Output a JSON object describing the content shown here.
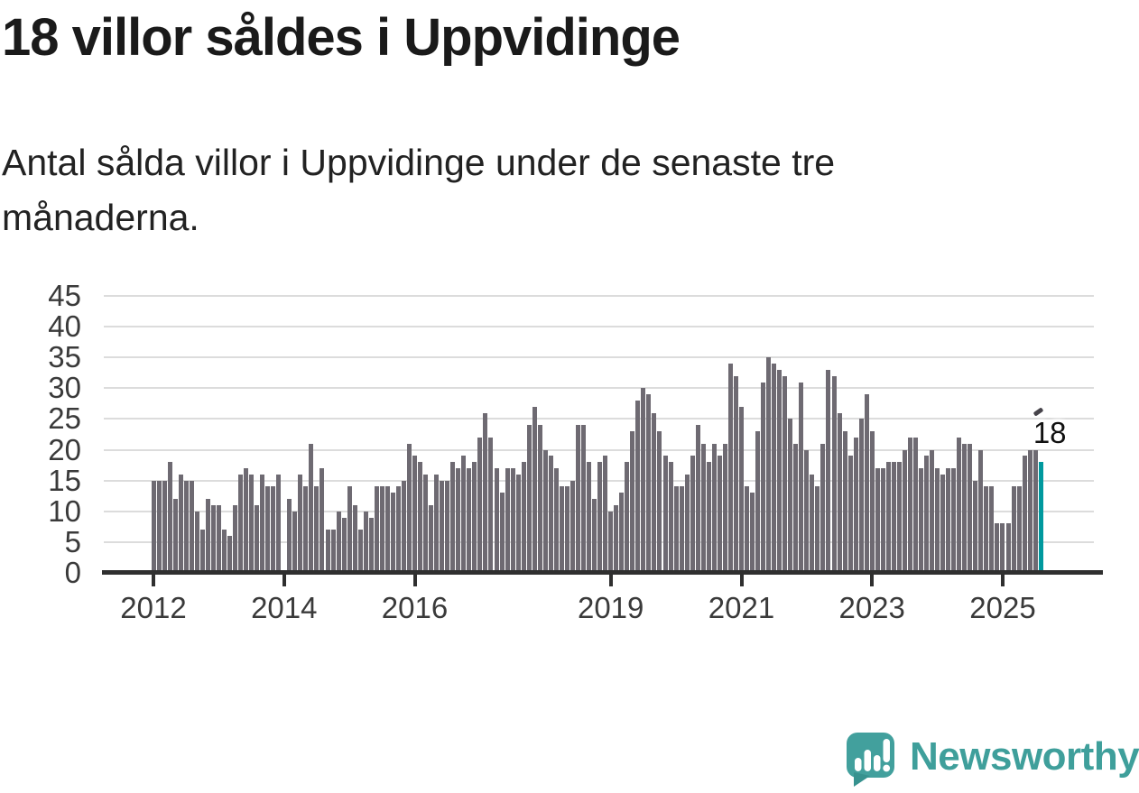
{
  "title": "18 villor såldes i Uppvidinge",
  "subtitle_lines": [
    "Antal sålda villor i Uppvidinge under de senaste tre",
    "månaderna."
  ],
  "annotation": {
    "label": "18"
  },
  "logo": {
    "text": "Newsworthy"
  },
  "colors": {
    "bar": "#6e6a72",
    "highlight": "#00999e",
    "grid": "#dcdcdc",
    "axis": "#2f2f2f",
    "tick_text": "#3a3a3a",
    "title_text": "#1a1a1a",
    "logo_teal": "#3f9f9b"
  },
  "chart_data": {
    "type": "bar",
    "title": "18 villor såldes i Uppvidinge",
    "subtitle": "Antal sålda villor i Uppvidinge under de senaste tre månaderna.",
    "xlabel": "",
    "ylabel": "",
    "x_start": "2012-01",
    "x_frequency": "monthly",
    "ylim": [
      0,
      45
    ],
    "grid": "horizontal",
    "yticks": [
      0,
      5,
      10,
      15,
      20,
      25,
      30,
      35,
      40,
      45
    ],
    "xticks": [
      {
        "label": "2012",
        "index": 0
      },
      {
        "label": "2014",
        "index": 24
      },
      {
        "label": "2016",
        "index": 48
      },
      {
        "label": "2019",
        "index": 84
      },
      {
        "label": "2021",
        "index": 108
      },
      {
        "label": "2023",
        "index": 132
      },
      {
        "label": "2025",
        "index": 156
      }
    ],
    "values": [
      15,
      15,
      15,
      18,
      12,
      16,
      15,
      15,
      10,
      7,
      12,
      11,
      11,
      7,
      6,
      11,
      16,
      17,
      16,
      11,
      16,
      14,
      14,
      16,
      0,
      12,
      10,
      16,
      14,
      21,
      14,
      17,
      7,
      7,
      10,
      9,
      14,
      11,
      7,
      10,
      9,
      14,
      14,
      14,
      13,
      14,
      15,
      21,
      19,
      18,
      16,
      11,
      16,
      15,
      15,
      18,
      17,
      19,
      17,
      18,
      22,
      26,
      22,
      17,
      13,
      17,
      17,
      16,
      18,
      24,
      27,
      24,
      20,
      19,
      17,
      14,
      14,
      15,
      24,
      24,
      18,
      12,
      18,
      19,
      10,
      11,
      13,
      18,
      23,
      28,
      30,
      29,
      26,
      23,
      19,
      18,
      14,
      14,
      16,
      19,
      24,
      21,
      18,
      21,
      19,
      21,
      34,
      32,
      27,
      14,
      13,
      23,
      31,
      35,
      34,
      33,
      32,
      25,
      21,
      31,
      20,
      16,
      14,
      21,
      33,
      32,
      26,
      23,
      19,
      22,
      25,
      29,
      23,
      17,
      17,
      18,
      18,
      18,
      20,
      22,
      22,
      17,
      19,
      20,
      17,
      16,
      17,
      17,
      22,
      21,
      21,
      15,
      20,
      14,
      14,
      8,
      8,
      8,
      14,
      14,
      19,
      20,
      20,
      18
    ],
    "highlight_index": 163,
    "highlight_value": 18,
    "annotation_label": "18"
  }
}
